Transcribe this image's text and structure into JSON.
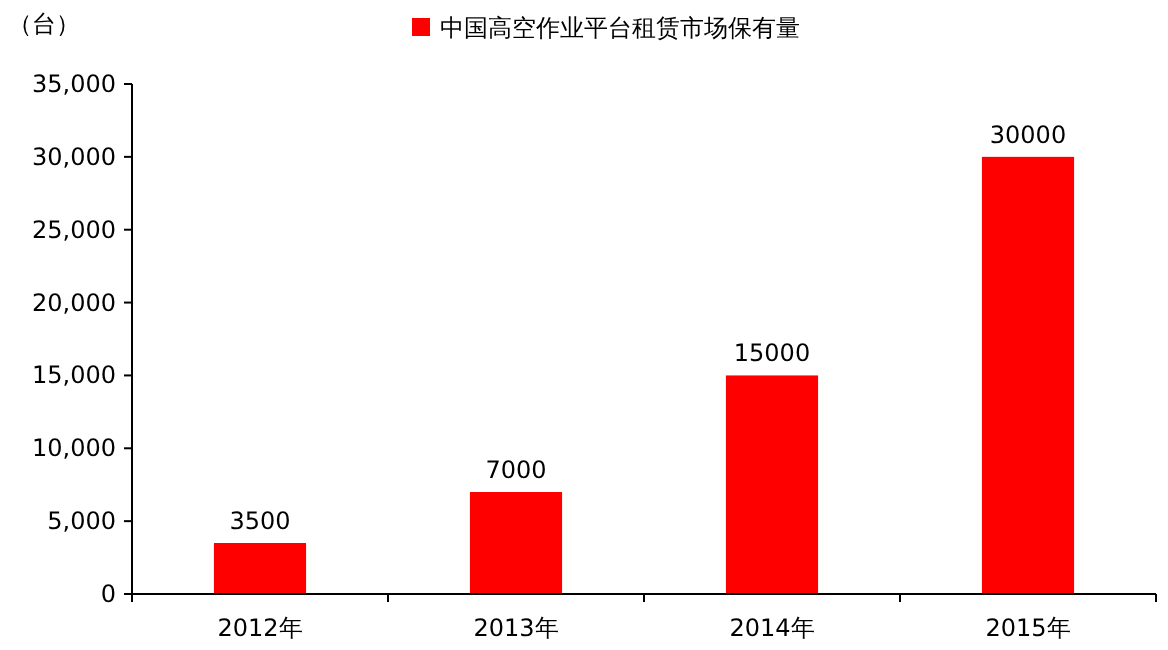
{
  "chart_data": {
    "type": "bar",
    "ylabel": "（台）",
    "categories": [
      "2012年",
      "2013年",
      "2014年",
      "2015年"
    ],
    "series": [
      {
        "name": "中国高空作业平台租赁市场保有量",
        "color": "#ff0000",
        "values": [
          3500,
          7000,
          15000,
          30000
        ]
      }
    ],
    "ylim": [
      0,
      35000
    ],
    "yticks": [
      0,
      {
        "value": 5000,
        "label": "5,000"
      },
      {
        "value": 10000,
        "label": "10,000"
      },
      {
        "value": 15000,
        "label": "15,000"
      },
      {
        "value": 20000,
        "label": "20,000"
      },
      {
        "value": 25000,
        "label": "25,000"
      },
      {
        "value": 30000,
        "label": "30,000"
      },
      {
        "value": 35000,
        "label": "35,000"
      }
    ],
    "data_labels": true,
    "legend": "top",
    "grid": false
  }
}
